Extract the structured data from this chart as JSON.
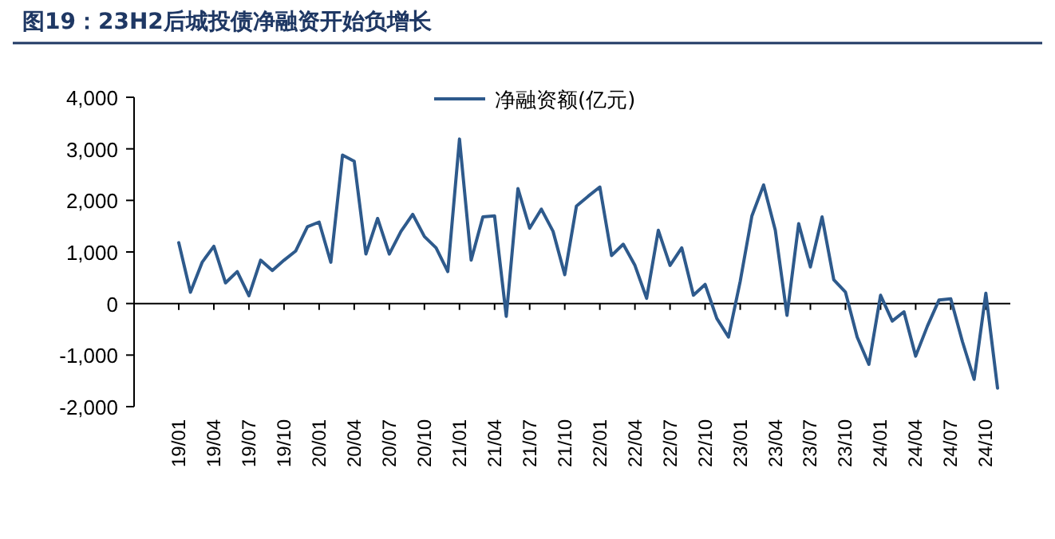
{
  "chart_data": {
    "type": "line",
    "title": "图19：23H2后城投债净融资开始负增长",
    "categories": [
      "19/01",
      null,
      null,
      "19/04",
      null,
      null,
      "19/07",
      null,
      null,
      "19/10",
      null,
      null,
      "20/01",
      null,
      null,
      "20/04",
      null,
      null,
      "20/07",
      null,
      null,
      "20/10",
      null,
      null,
      "21/01",
      null,
      null,
      "21/04",
      null,
      null,
      "21/07",
      null,
      null,
      "21/10",
      null,
      null,
      "22/01",
      null,
      null,
      "22/04",
      null,
      null,
      "22/07",
      null,
      null,
      "22/10",
      null,
      null,
      "23/01",
      null,
      null,
      "23/04",
      null,
      null,
      "23/07",
      null,
      null,
      "23/10",
      null,
      null,
      "24/01",
      null,
      null,
      "24/04",
      null,
      null,
      "24/07",
      null,
      null,
      "24/10",
      null
    ],
    "series": [
      {
        "name": "净融资额(亿元)",
        "color": "#2e5a8c",
        "values": [
          1180,
          220,
          800,
          1110,
          400,
          620,
          150,
          840,
          640,
          840,
          1020,
          1490,
          1580,
          800,
          2880,
          2760,
          960,
          1650,
          960,
          1400,
          1730,
          1300,
          1080,
          620,
          3190,
          840,
          1680,
          1700,
          -250,
          2230,
          1460,
          1830,
          1400,
          560,
          1890,
          2080,
          2260,
          930,
          1150,
          740,
          100,
          1420,
          740,
          1080,
          160,
          370,
          -290,
          -650,
          430,
          1700,
          2300,
          1420,
          -230,
          1550,
          710,
          1680,
          460,
          220,
          -650,
          -1180,
          160,
          -340,
          -160,
          -1020,
          -440,
          70,
          90,
          -740,
          -1470,
          200,
          -1640
        ]
      }
    ],
    "ylim": [
      -2000,
      4000
    ],
    "yticks": [
      {
        "value": -2000,
        "label": "-2,000"
      },
      {
        "value": -1000,
        "label": "-1,000"
      },
      {
        "value": 0,
        "label": "0"
      },
      {
        "value": 1000,
        "label": "1,000"
      },
      {
        "value": 2000,
        "label": "2,000"
      },
      {
        "value": 3000,
        "label": "3,000"
      },
      {
        "value": 4000,
        "label": "4,000"
      }
    ],
    "legend": "top",
    "marker": "none",
    "line_style": "solid"
  }
}
